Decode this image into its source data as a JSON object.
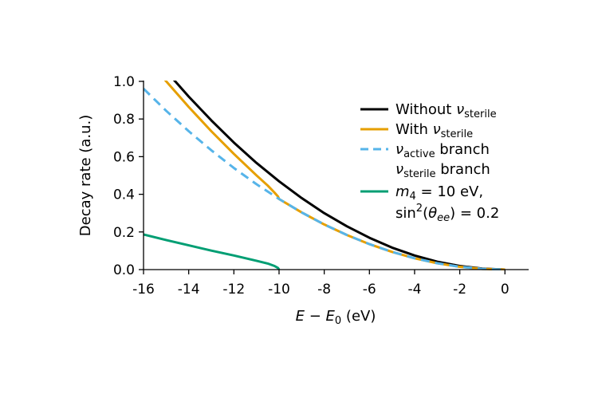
{
  "chart_data": {
    "type": "line",
    "title": "",
    "xlabel": "E − E0 (eV)",
    "ylabel": "Decay rate (a.u.)",
    "xlim": [
      -16,
      1.05
    ],
    "ylim": [
      0,
      1.0
    ],
    "grid": false,
    "legend_placement": "right",
    "xticks": [
      -16,
      -14,
      -12,
      -10,
      -8,
      -6,
      -4,
      -2,
      0
    ],
    "xtick_labels": [
      "-16",
      "-14",
      "-12",
      "-10",
      "-8",
      "-6",
      "-4",
      "-2",
      "0"
    ],
    "yticks": [
      0,
      0.2,
      0.4,
      0.6,
      0.8,
      1.0
    ],
    "ytick_labels": [
      "0.0",
      "0.2",
      "0.4",
      "0.6",
      "0.8",
      "1.0"
    ],
    "series": [
      {
        "name": "Without ν_sterile",
        "color": "#000000",
        "style": "solid",
        "x": [
          -16,
          -15,
          -14,
          -13,
          -12,
          -11,
          -10,
          -9,
          -8,
          -7,
          -6,
          -5,
          -4,
          -3,
          -2,
          -1,
          0
        ],
        "y": [
          1.201,
          1.055,
          0.919,
          0.793,
          0.675,
          0.567,
          0.469,
          0.38,
          0.3,
          0.23,
          0.169,
          0.117,
          0.075,
          0.042,
          0.019,
          0.005,
          0
        ]
      },
      {
        "name": "With ν_sterile",
        "color": "#E69F00",
        "style": "solid",
        "x": [
          -16,
          -15,
          -14,
          -13,
          -12,
          -11,
          -10.5,
          -10.2,
          -10.05,
          -10,
          -9,
          -8,
          -7,
          -6,
          -5,
          -4,
          -3,
          -2,
          -1,
          0
        ],
        "y": [
          1.148,
          1.001,
          0.864,
          0.735,
          0.615,
          0.501,
          0.446,
          0.409,
          0.388,
          0.375,
          0.304,
          0.24,
          0.184,
          0.135,
          0.094,
          0.06,
          0.034,
          0.015,
          0.004,
          0
        ]
      },
      {
        "name": "ν_active branch",
        "color": "#56B4E9",
        "style": "dashed",
        "x": [
          -16,
          -15,
          -14,
          -13,
          -12,
          -11,
          -10,
          -9,
          -8,
          -7,
          -6,
          -5,
          -4,
          -3,
          -2,
          -1,
          0
        ],
        "y": [
          0.961,
          0.844,
          0.735,
          0.634,
          0.54,
          0.454,
          0.375,
          0.304,
          0.24,
          0.184,
          0.135,
          0.094,
          0.06,
          0.034,
          0.015,
          0.004,
          0
        ]
      },
      {
        "name": "ν_sterile branch m4 = 10 eV, sin²(θee) = 0.2",
        "color": "#009E73",
        "style": "solid",
        "x": [
          -16,
          -15,
          -14,
          -13,
          -12,
          -11,
          -10.5,
          -10.2,
          -10.05,
          -10
        ],
        "y": [
          0.187,
          0.157,
          0.129,
          0.101,
          0.075,
          0.047,
          0.032,
          0.019,
          0.009,
          0
        ]
      }
    ]
  },
  "legend": {
    "without": {
      "main": "Without ",
      "nu": "ν",
      "sub": "sterile"
    },
    "with": {
      "main": "With ",
      "nu": "ν",
      "sub": "sterile"
    },
    "active": {
      "nu": "ν",
      "sub": "active",
      "rest": " branch"
    },
    "sterile": {
      "nu": "ν",
      "sub": "sterile",
      "rest": " branch",
      "line2_m": "m",
      "line2_sub": "4",
      "line2_rest": " = 10 eV,",
      "line3_a": "sin",
      "line3_sup": "2",
      "line3_b": "(",
      "line3_theta": "θ",
      "line3_sub": "ee",
      "line3_c": ") = 0.2"
    }
  }
}
